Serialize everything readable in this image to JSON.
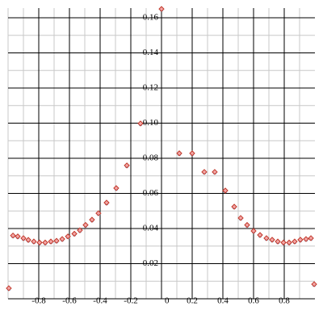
{
  "chart_data": {
    "type": "scatter",
    "x": [
      -0.995,
      -0.968,
      -0.937,
      -0.9,
      -0.868,
      -0.832,
      -0.795,
      -0.758,
      -0.721,
      -0.684,
      -0.647,
      -0.61,
      -0.568,
      -0.532,
      -0.495,
      -0.453,
      -0.411,
      -0.358,
      -0.295,
      -0.226,
      -0.137,
      0,
      0.116,
      0.2,
      0.279,
      0.347,
      0.416,
      0.474,
      0.516,
      0.558,
      0.6,
      0.642,
      0.684,
      0.721,
      0.758,
      0.795,
      0.832,
      0.868,
      0.905,
      0.942,
      0.974,
      0.995
    ],
    "values": [
      0.006,
      0.036,
      0.0355,
      0.0345,
      0.0335,
      0.0326,
      0.032,
      0.032,
      0.0326,
      0.033,
      0.034,
      0.0355,
      0.037,
      0.039,
      0.042,
      0.045,
      0.0487,
      0.0547,
      0.063,
      0.0759,
      0.0998,
      0.165,
      0.0828,
      0.0828,
      0.0722,
      0.0722,
      0.0616,
      0.0524,
      0.046,
      0.042,
      0.0386,
      0.0363,
      0.0345,
      0.0336,
      0.0326,
      0.032,
      0.032,
      0.0326,
      0.0336,
      0.034,
      0.0345,
      0.0083
    ],
    "color": "#c0392b",
    "xlim": [
      -1,
      1
    ],
    "ylim": [
      0,
      0.1655
    ],
    "xticks": [
      -0.8,
      -0.6,
      -0.4,
      -0.2,
      0,
      0.2,
      0.4,
      0.6,
      0.8
    ],
    "yticks": [
      0.02,
      0.04,
      0.06,
      0.08,
      {
        "value": 0.1,
        "label": "0.10"
      },
      0.12,
      0.14,
      0.16
    ],
    "grid": true
  }
}
